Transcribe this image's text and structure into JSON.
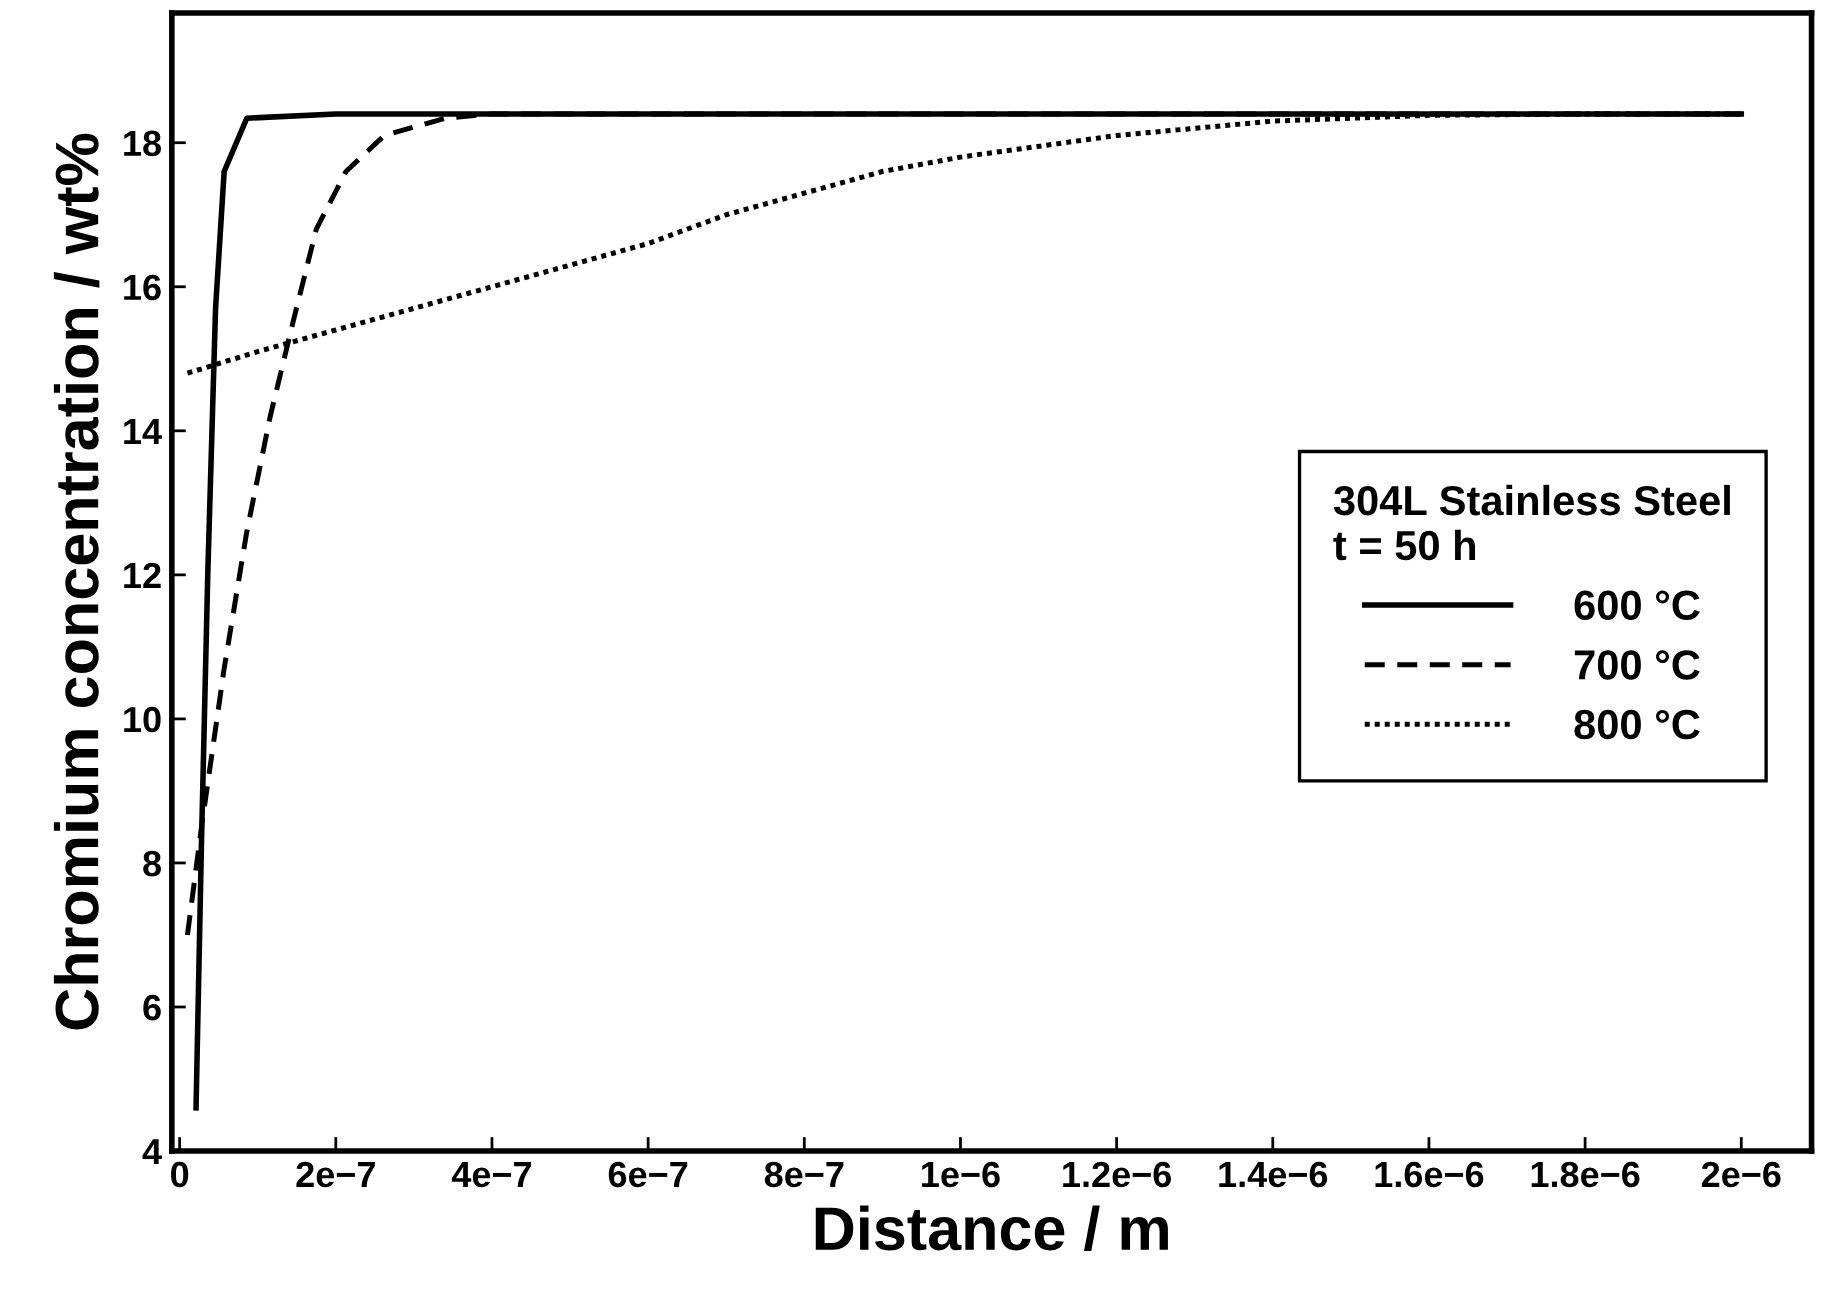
{
  "chart_data": {
    "type": "line",
    "xlabel": "Distance / m",
    "ylabel": "Chromium concentration / wt%",
    "legend_title": "304L Stainless Steel\nt = 50 h",
    "legend": "right",
    "grid": false,
    "xlim": [
      -1e-08,
      2.09e-06
    ],
    "ylim": [
      4,
      19.8
    ],
    "xticks": [
      {
        "value": 0,
        "label": "0"
      },
      {
        "value": 2e-07,
        "label": "2e−7"
      },
      {
        "value": 4e-07,
        "label": "4e−7"
      },
      {
        "value": 6e-07,
        "label": "6e−7"
      },
      {
        "value": 8e-07,
        "label": "8e−7"
      },
      {
        "value": 1e-06,
        "label": "1e−6"
      },
      {
        "value": 1.2e-06,
        "label": "1.2e−6"
      },
      {
        "value": 1.4e-06,
        "label": "1.4e−6"
      },
      {
        "value": 1.6e-06,
        "label": "1.6e−6"
      },
      {
        "value": 1.8e-06,
        "label": "1.8e−6"
      },
      {
        "value": 2e-06,
        "label": "2e−6"
      }
    ],
    "yticks": [
      4,
      6,
      8,
      10,
      12,
      14,
      16,
      18
    ],
    "series": [
      {
        "name": "600 °C",
        "color": "#000000",
        "line_style": "solid",
        "x": [
          2.1e-08,
          2.8e-08,
          3.6e-08,
          4.6e-08,
          5.7e-08,
          8.6e-08,
          2e-07,
          1e-06,
          2e-06
        ],
        "values": [
          4.6,
          8.3,
          12.0,
          15.7,
          17.6,
          18.34,
          18.4,
          18.4,
          18.4
        ]
      },
      {
        "name": "700 °C",
        "color": "#000000",
        "line_style": "dashed",
        "x": [
          1e-08,
          2.8e-08,
          5.7e-08,
          8.6e-08,
          1.16e-07,
          1.45e-07,
          1.75e-07,
          2.13e-07,
          2.62e-07,
          3.4e-07,
          4e-07,
          1e-06,
          2e-06
        ],
        "values": [
          7.0,
          8.5,
          10.7,
          12.6,
          14.2,
          15.5,
          16.8,
          17.6,
          18.1,
          18.34,
          18.4,
          18.4,
          18.4
        ]
      },
      {
        "name": "800 °C",
        "color": "#000000",
        "line_style": "dotted",
        "x": [
          1e-08,
          1e-07,
          2e-07,
          3e-07,
          4e-07,
          5e-07,
          6e-07,
          7e-07,
          8e-07,
          9e-07,
          1e-06,
          1.2e-06,
          1.4e-06,
          1.6e-06,
          1.8e-06,
          2e-06
        ],
        "values": [
          14.8,
          15.1,
          15.4,
          15.7,
          16.0,
          16.3,
          16.6,
          17.0,
          17.3,
          17.6,
          17.8,
          18.1,
          18.3,
          18.38,
          18.4,
          18.4
        ]
      }
    ]
  }
}
